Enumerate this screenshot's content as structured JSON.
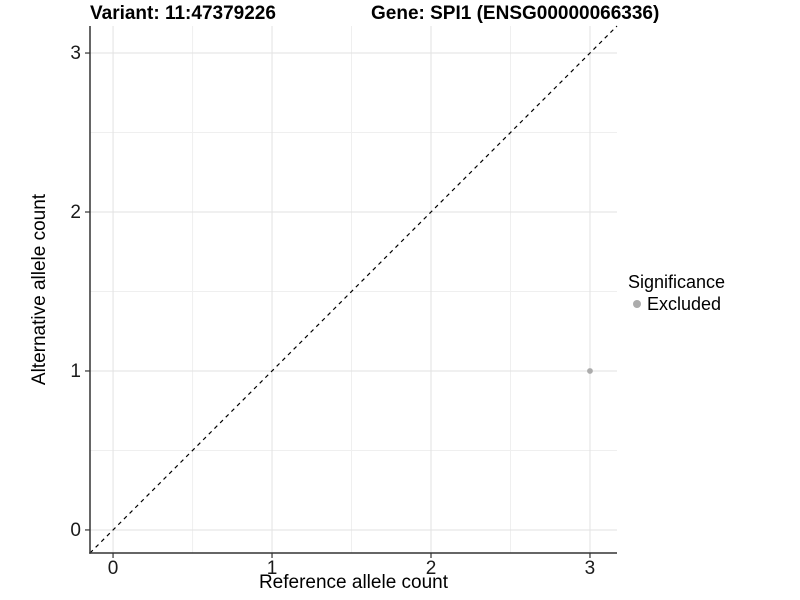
{
  "chart_data": {
    "type": "scatter",
    "title_left": "Variant: 11:47379226",
    "title_right": "Gene: SPI1 (ENSG00000066336)",
    "xlabel": "Reference allele count",
    "ylabel": "Alternative allele count",
    "xlim": [
      -0.145,
      3.17
    ],
    "ylim": [
      -0.145,
      3.17
    ],
    "xticks": [
      0,
      1,
      2,
      3
    ],
    "yticks": [
      0,
      1,
      2,
      3
    ],
    "minor_grid_step": 0.5,
    "grid": true,
    "legend_position": "right",
    "series": [
      {
        "name": "Excluded",
        "color": "#acacac",
        "points": [
          {
            "x": 3,
            "y": 1
          }
        ]
      }
    ],
    "reference_line": {
      "equation": "y = x",
      "style": "dashed",
      "color": "#000000"
    },
    "legend": {
      "title": "Significance",
      "items": [
        {
          "label": "Excluded",
          "color": "#acacac"
        }
      ]
    }
  },
  "colors": {
    "background": "#ffffff",
    "axis_line": "#333333",
    "major_grid": "#e2e2e2",
    "minor_grid": "#efefef",
    "tick_text": "#1a1a1a"
  }
}
